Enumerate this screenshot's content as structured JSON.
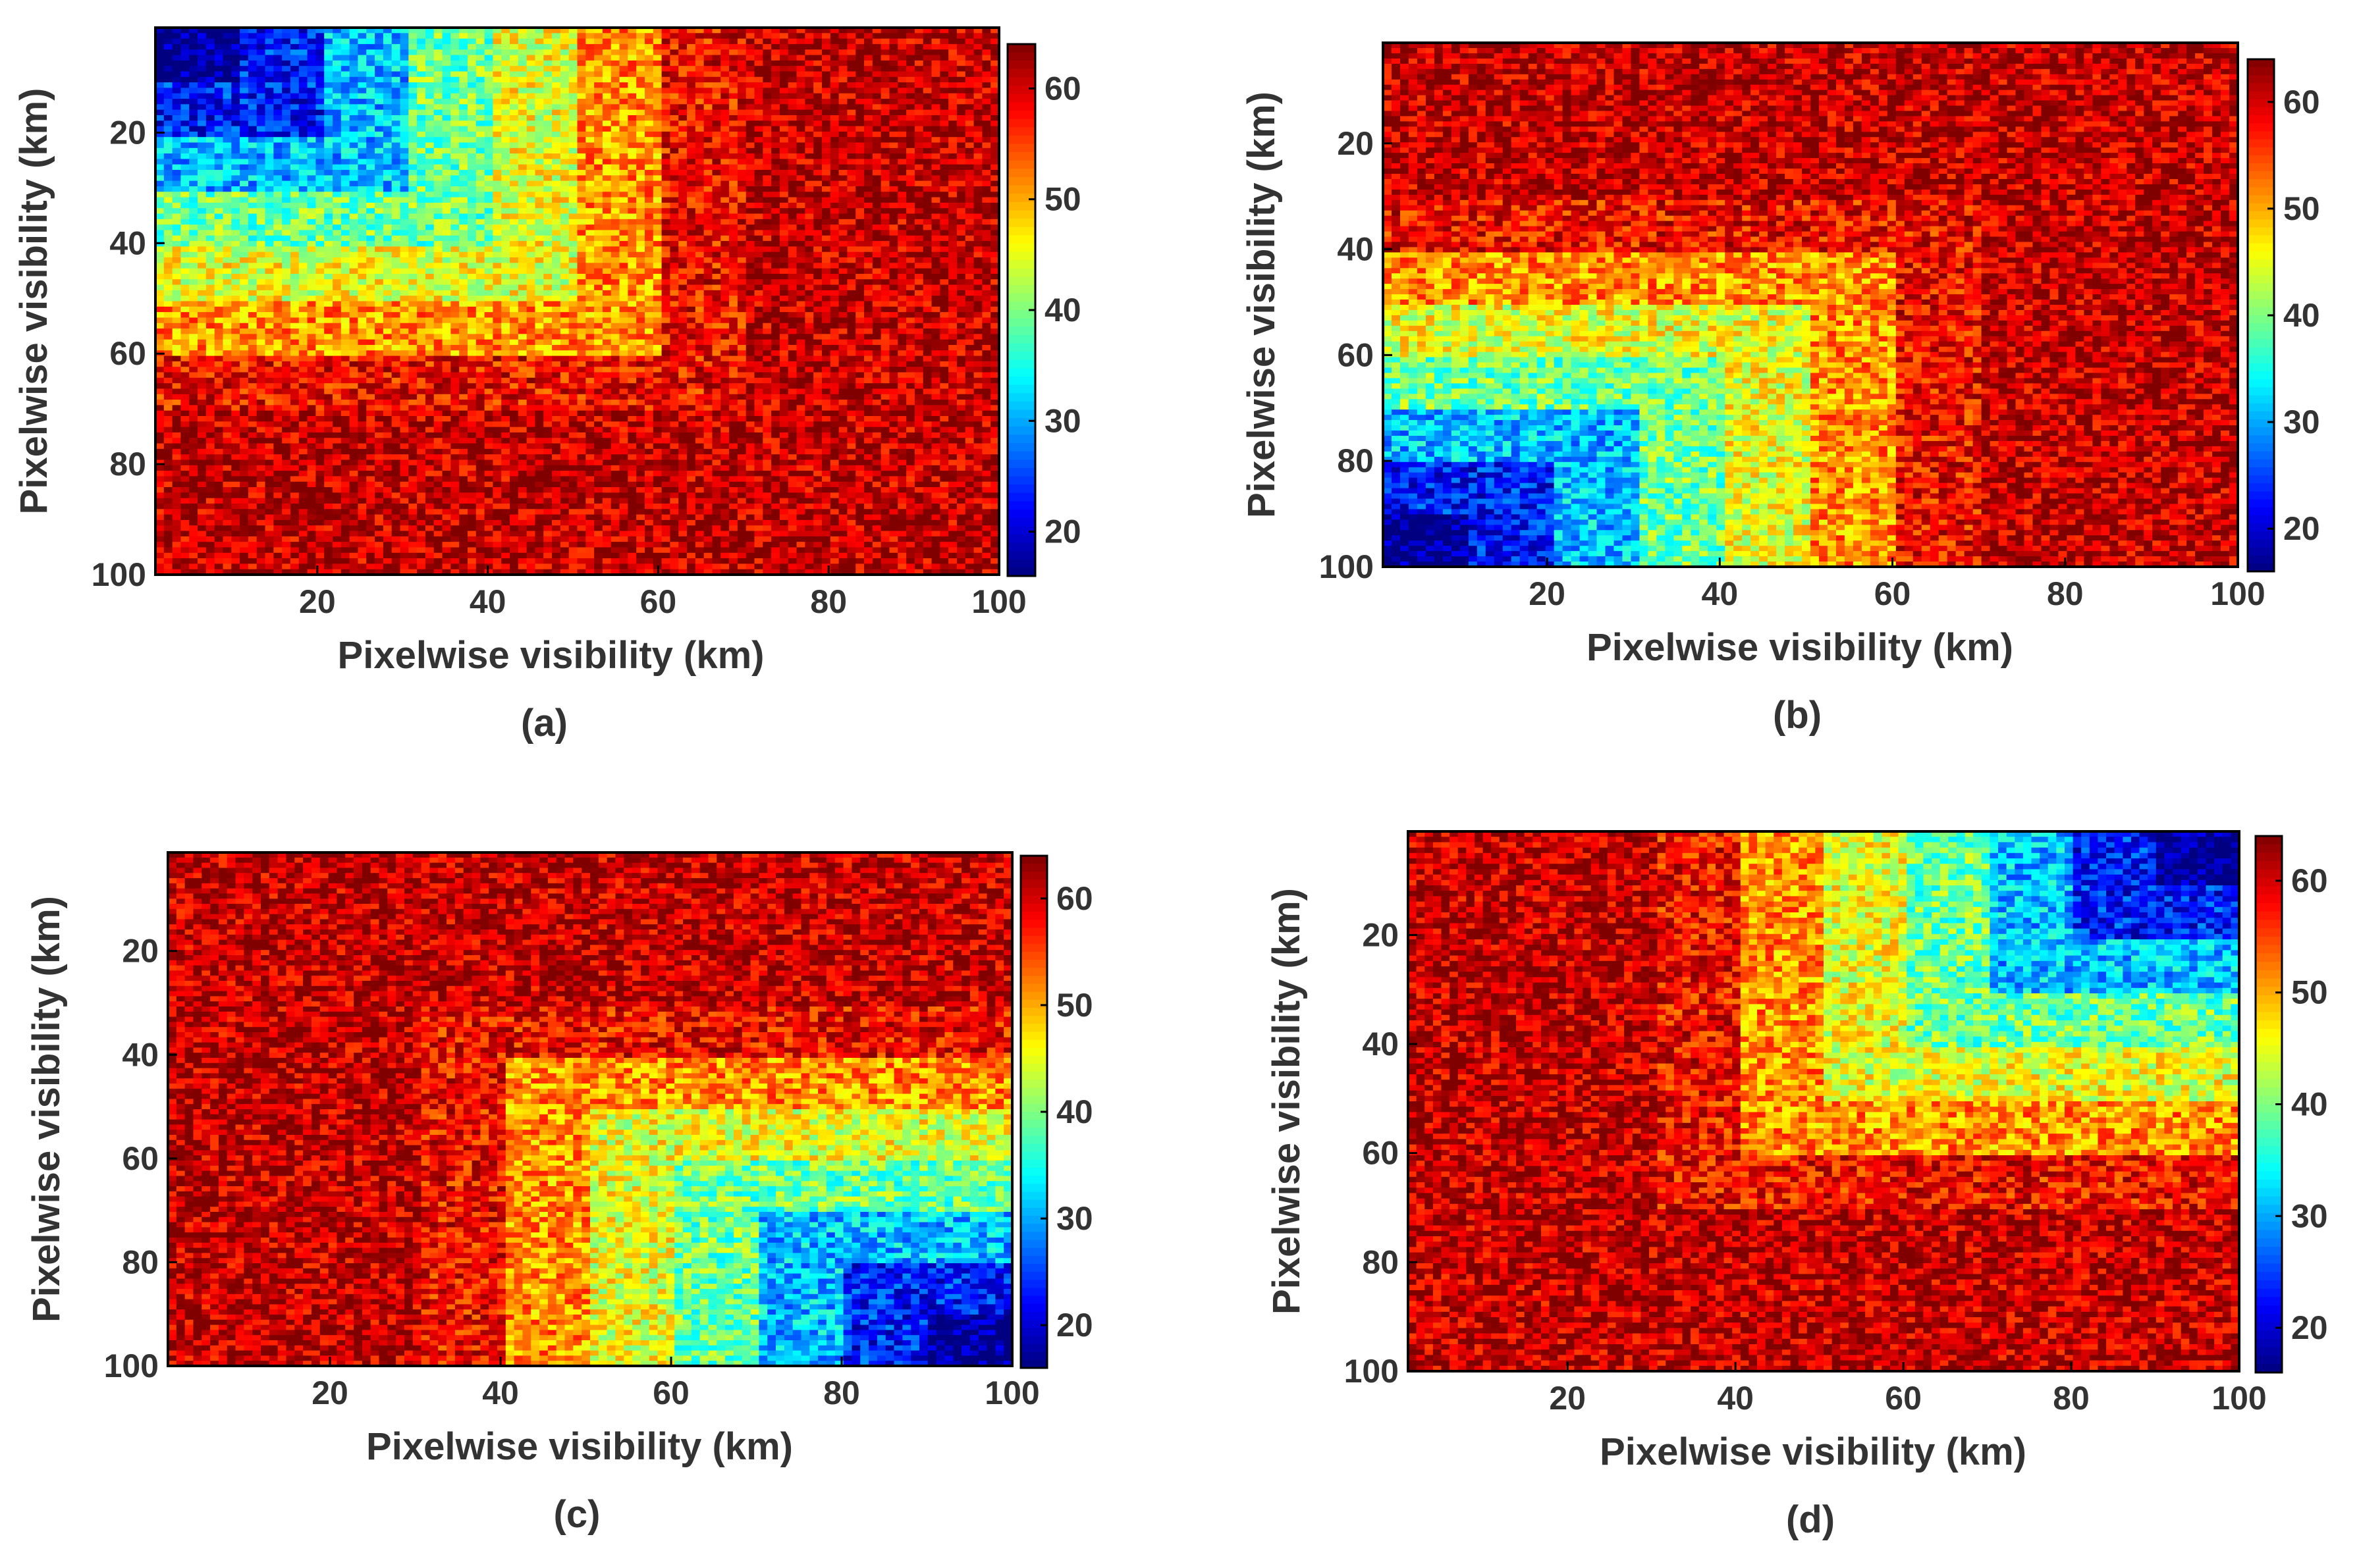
{
  "figure": {
    "description_free": true,
    "panels": [
      "a",
      "b",
      "c",
      "d"
    ]
  },
  "chart_data": [
    {
      "type": "heatmap",
      "panel_label": "(a)",
      "xlabel": "Pixelwise visibility (km)",
      "ylabel": "Pixelwise visibility (km)",
      "xlim": [
        1,
        100
      ],
      "ylim": [
        1,
        100
      ],
      "x_ticks": [
        20,
        40,
        60,
        80,
        100
      ],
      "y_ticks": [
        20,
        40,
        60,
        80,
        100
      ],
      "y_direction": "top-to-bottom",
      "grid": false,
      "rows": 100,
      "cols": 100,
      "band_corner": "top-left",
      "band_width": 10,
      "band_levels": [
        16,
        23,
        31,
        39,
        45,
        51,
        58,
        61,
        61,
        61
      ],
      "noise_amplitude": 6,
      "colorbar": {
        "colormap": "jet",
        "range": [
          16,
          64
        ],
        "ticks": [
          20,
          30,
          40,
          50,
          60
        ]
      }
    },
    {
      "type": "heatmap",
      "panel_label": "(b)",
      "xlabel": "Pixelwise visibility (km)",
      "ylabel": "Pixelwise visibility (km)",
      "xlim": [
        1,
        100
      ],
      "ylim": [
        1,
        100
      ],
      "x_ticks": [
        20,
        40,
        60,
        80,
        100
      ],
      "y_ticks": [
        20,
        40,
        60,
        80,
        100
      ],
      "y_direction": "top-to-bottom",
      "grid": false,
      "rows": 100,
      "cols": 100,
      "band_corner": "bottom-left",
      "band_width": 10,
      "band_levels": [
        16,
        23,
        31,
        39,
        45,
        51,
        58,
        61,
        61,
        61
      ],
      "noise_amplitude": 6,
      "colorbar": {
        "colormap": "jet",
        "range": [
          16,
          64
        ],
        "ticks": [
          20,
          30,
          40,
          50,
          60
        ]
      }
    },
    {
      "type": "heatmap",
      "panel_label": "(c)",
      "xlabel": "Pixelwise visibility (km)",
      "ylabel": "Pixelwise visibility (km)",
      "xlim": [
        1,
        100
      ],
      "ylim": [
        1,
        100
      ],
      "x_ticks": [
        20,
        40,
        60,
        80,
        100
      ],
      "y_ticks": [
        20,
        40,
        60,
        80,
        100
      ],
      "y_direction": "top-to-bottom",
      "grid": false,
      "rows": 100,
      "cols": 100,
      "band_corner": "bottom-right",
      "band_width": 10,
      "band_levels": [
        16,
        23,
        31,
        39,
        45,
        51,
        58,
        61,
        61,
        61
      ],
      "noise_amplitude": 6,
      "colorbar": {
        "colormap": "jet",
        "range": [
          16,
          64
        ],
        "ticks": [
          20,
          30,
          40,
          50,
          60
        ]
      }
    },
    {
      "type": "heatmap",
      "panel_label": "(d)",
      "xlabel": "Pixelwise visibility (km)",
      "ylabel": "Pixelwise visibility (km)",
      "xlim": [
        1,
        100
      ],
      "ylim": [
        1,
        100
      ],
      "x_ticks": [
        20,
        40,
        60,
        80,
        100
      ],
      "y_ticks": [
        20,
        40,
        60,
        80,
        100
      ],
      "y_direction": "top-to-bottom",
      "grid": false,
      "rows": 100,
      "cols": 100,
      "band_corner": "top-right",
      "band_width": 10,
      "band_levels": [
        16,
        23,
        31,
        39,
        45,
        51,
        58,
        61,
        61,
        61
      ],
      "noise_amplitude": 6,
      "colorbar": {
        "colormap": "jet",
        "range": [
          16,
          64
        ],
        "ticks": [
          20,
          30,
          40,
          50,
          60
        ]
      }
    }
  ]
}
